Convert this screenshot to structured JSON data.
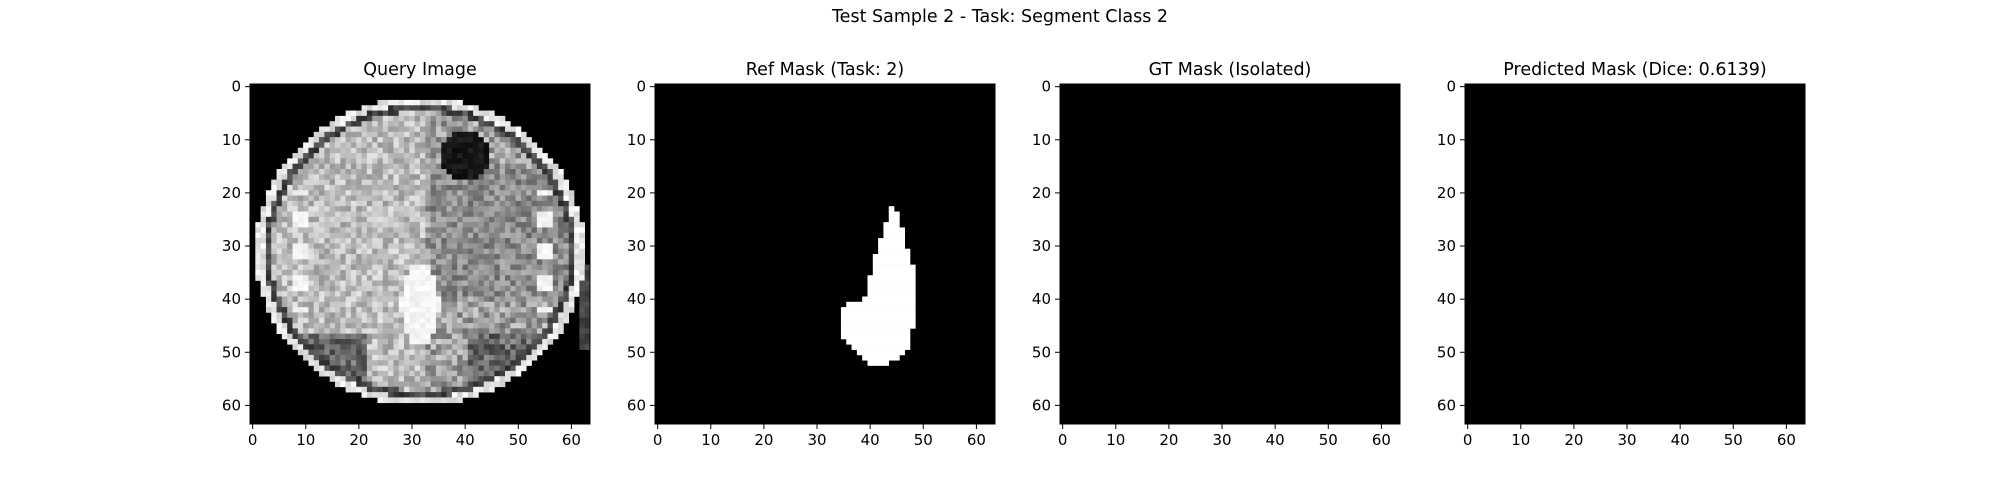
{
  "figure": {
    "suptitle": "Test Sample 2 - Task: Segment Class 2"
  },
  "colors": {
    "mask_on": "#ffffff",
    "mask_off": "#000000",
    "axis": "#000000"
  },
  "chart_data": [
    {
      "type": "heatmap",
      "title": "Query Image",
      "colormap": "gray",
      "image_size": [
        64,
        64
      ],
      "xlim": [
        0,
        63
      ],
      "ylim": [
        63,
        0
      ],
      "xticks": [
        0,
        10,
        20,
        30,
        40,
        50,
        60
      ],
      "yticks": [
        0,
        10,
        20,
        30,
        40,
        50,
        60
      ],
      "content": "grayscale CT slice"
    },
    {
      "type": "heatmap",
      "title": "Ref Mask (Task: 2)",
      "colormap": "gray",
      "image_size": [
        64,
        64
      ],
      "xlim": [
        0,
        63
      ],
      "ylim": [
        63,
        0
      ],
      "xticks": [
        0,
        10,
        20,
        30,
        40,
        50,
        60
      ],
      "yticks": [
        0,
        10,
        20,
        30,
        40,
        50,
        60
      ],
      "mask_rows": [
        [
          23,
          44,
          44
        ],
        [
          24,
          44,
          45
        ],
        [
          25,
          44,
          45
        ],
        [
          26,
          43,
          45
        ],
        [
          27,
          43,
          46
        ],
        [
          28,
          43,
          46
        ],
        [
          29,
          42,
          46
        ],
        [
          30,
          42,
          46
        ],
        [
          31,
          42,
          47
        ],
        [
          32,
          41,
          47
        ],
        [
          33,
          41,
          47
        ],
        [
          34,
          41,
          48
        ],
        [
          35,
          41,
          48
        ],
        [
          36,
          40,
          48
        ],
        [
          37,
          40,
          48
        ],
        [
          38,
          40,
          48
        ],
        [
          39,
          40,
          48
        ],
        [
          40,
          39,
          48
        ],
        [
          41,
          36,
          48
        ],
        [
          42,
          35,
          48
        ],
        [
          43,
          35,
          48
        ],
        [
          44,
          35,
          48
        ],
        [
          45,
          35,
          48
        ],
        [
          46,
          35,
          47
        ],
        [
          47,
          35,
          47
        ],
        [
          48,
          36,
          47
        ],
        [
          49,
          37,
          47
        ],
        [
          50,
          38,
          46
        ],
        [
          51,
          39,
          45
        ],
        [
          52,
          40,
          43
        ]
      ]
    },
    {
      "type": "heatmap",
      "title": "GT Mask (Isolated)",
      "colormap": "gray",
      "image_size": [
        64,
        64
      ],
      "xlim": [
        0,
        63
      ],
      "ylim": [
        63,
        0
      ],
      "xticks": [
        0,
        10,
        20,
        30,
        40,
        50,
        60
      ],
      "yticks": [
        0,
        10,
        20,
        30,
        40,
        50,
        60
      ],
      "mask_rows": []
    },
    {
      "type": "heatmap",
      "title": "Predicted Mask (Dice: 0.6139)",
      "colormap": "gray",
      "image_size": [
        64,
        64
      ],
      "xlim": [
        0,
        63
      ],
      "ylim": [
        63,
        0
      ],
      "xticks": [
        0,
        10,
        20,
        30,
        40,
        50,
        60
      ],
      "yticks": [
        0,
        10,
        20,
        30,
        40,
        50,
        60
      ],
      "mask_rows": []
    }
  ]
}
